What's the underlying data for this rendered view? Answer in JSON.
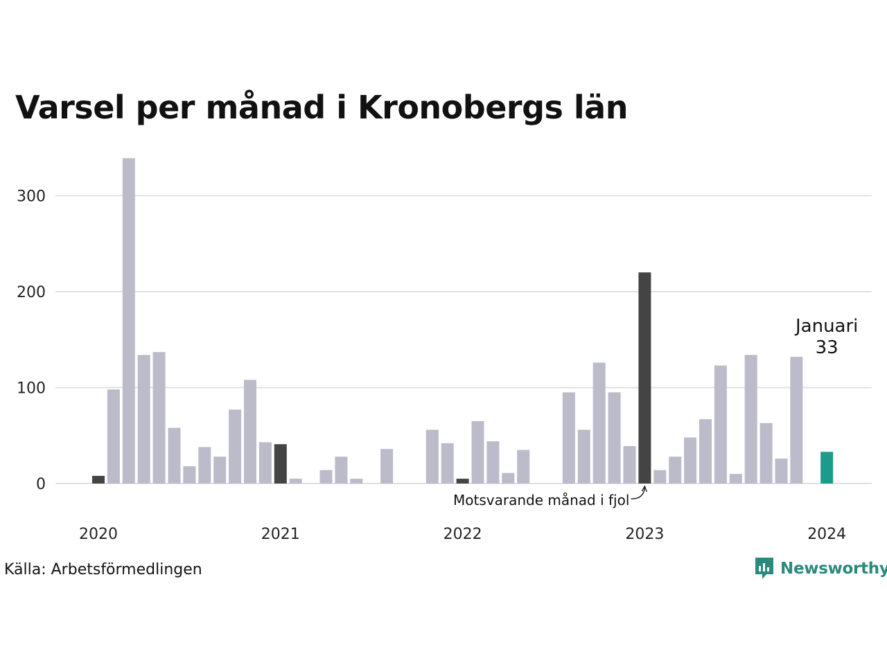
{
  "title": "Varsel per månad i Kronobergs län",
  "source": "Källa: Arbetsförmedlingen",
  "brand": {
    "name": "Newsworthy",
    "icon": "newsworthy-logo-icon"
  },
  "colors": {
    "default": "#bcbbc9",
    "comparison": "#444444",
    "current": "#1a9b8c",
    "grid": "#e0e0e0"
  },
  "chart_data": {
    "type": "bar",
    "title": "Varsel per månad i Kronobergs län",
    "xlabel": "",
    "ylabel": "",
    "ylim": [
      0,
      340
    ],
    "yticks": [
      0,
      100,
      200,
      300
    ],
    "xtick_labels": [
      "2020",
      "2021",
      "2022",
      "2023",
      "2024"
    ],
    "grid": true,
    "annotations": {
      "current_label": "Januari",
      "current_value": "33",
      "comparison_label": "Motsvarande månad i fjol"
    },
    "series": [
      {
        "x": [
          "2020-01",
          "2020-02",
          "2020-03",
          "2020-04",
          "2020-05",
          "2020-06",
          "2020-07",
          "2020-08",
          "2020-09",
          "2020-10",
          "2020-11",
          "2020-12",
          "2021-01",
          "2021-02",
          "2021-03",
          "2021-04",
          "2021-05",
          "2021-06",
          "2021-07",
          "2021-08",
          "2021-09",
          "2021-10",
          "2021-11",
          "2021-12",
          "2022-01",
          "2022-02",
          "2022-03",
          "2022-04",
          "2022-05",
          "2022-06",
          "2022-07",
          "2022-08",
          "2022-09",
          "2022-10",
          "2022-11",
          "2022-12",
          "2023-01",
          "2023-02",
          "2023-03",
          "2023-04",
          "2023-05",
          "2023-06",
          "2023-07",
          "2023-08",
          "2023-09",
          "2023-10",
          "2023-11",
          "2023-12",
          "2024-01"
        ],
        "values": [
          8,
          98,
          339,
          134,
          137,
          58,
          18,
          38,
          28,
          77,
          108,
          43,
          41,
          5,
          0,
          14,
          28,
          5,
          0,
          36,
          0,
          0,
          56,
          42,
          5,
          65,
          44,
          11,
          35,
          0,
          0,
          95,
          56,
          126,
          95,
          39,
          220,
          14,
          28,
          48,
          67,
          123,
          10,
          134,
          63,
          26,
          132,
          0,
          33
        ],
        "highlight": {
          "comparison": [
            0,
            12,
            24,
            36
          ],
          "current": [
            48
          ]
        }
      }
    ]
  }
}
